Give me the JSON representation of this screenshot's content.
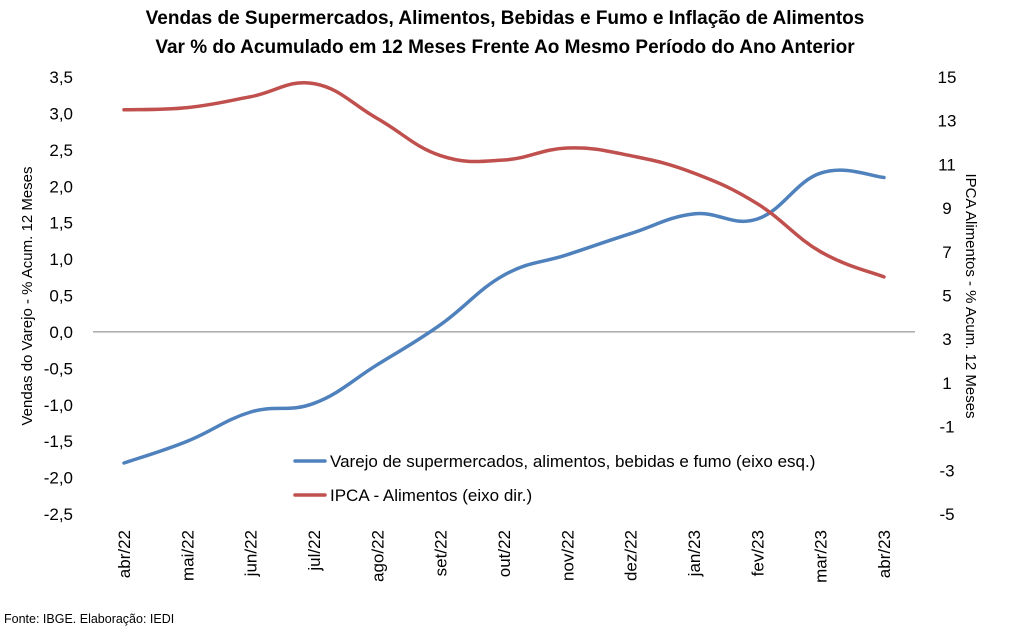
{
  "chart_data": {
    "type": "line",
    "title": "Vendas de Supermercados, Alimentos, Bebidas e Fumo e Inflação de Alimentos",
    "subtitle": "Var % do Acumulado em 12 Meses Frente Ao Mesmo Período do Ano Anterior",
    "categories": [
      "abr/22",
      "mai/22",
      "jun/22",
      "jul/22",
      "ago/22",
      "set/22",
      "out/22",
      "nov/22",
      "dez/22",
      "jan/23",
      "fev/23",
      "mar/23",
      "abr/23"
    ],
    "ylabel_left": "Vendas do Varejo - % Acum. 12 Meses",
    "ylabel_right": "IPCA Alimentos - % Acum. 12 Meses",
    "y_left": {
      "min": -2.5,
      "max": 3.5,
      "step": 0.5,
      "ticks": [
        "3,5",
        "3,0",
        "2,5",
        "2,0",
        "1,5",
        "1,0",
        "0,5",
        "0,0",
        "-0,5",
        "-1,0",
        "-1,5",
        "-2,0",
        "-2,5"
      ]
    },
    "y_right": {
      "min": -5,
      "max": 15,
      "step": 2,
      "ticks": [
        "15",
        "13",
        "11",
        "9",
        "7",
        "5",
        "3",
        "1",
        "-1",
        "-3",
        "-5"
      ]
    },
    "series": [
      {
        "name": "Varejo de supermercados, alimentos, bebidas e fumo (eixo esq.)",
        "axis": "left",
        "color": "#4f81bd",
        "values": [
          -1.8,
          -1.5,
          -1.1,
          -0.98,
          -0.45,
          0.1,
          0.78,
          1.06,
          1.35,
          1.62,
          1.55,
          2.18,
          2.12
        ]
      },
      {
        "name": "IPCA - Alimentos (eixo dir.)",
        "axis": "right",
        "color": "#c0504d",
        "values": [
          13.5,
          13.6,
          14.1,
          14.7,
          13.1,
          11.4,
          11.2,
          11.75,
          11.4,
          10.6,
          9.2,
          7.0,
          5.85
        ]
      }
    ],
    "zero_line": true,
    "grid": false,
    "legend_position": "inside-bottom-right"
  },
  "footer": {
    "source": "Fonte: IBGE. Elaboração: IEDI"
  }
}
